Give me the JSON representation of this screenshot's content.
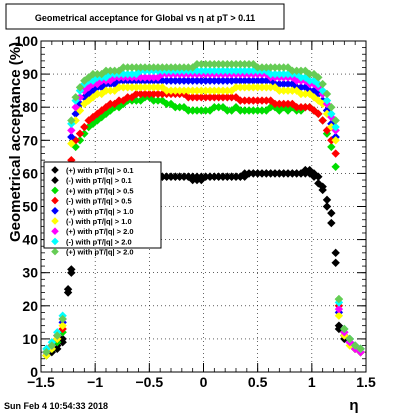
{
  "header": {
    "title": "Geometrical acceptance for Global vs   η at pT > 0.11"
  },
  "footer": {
    "timestamp": "Sun Feb  4 10:54:33 2018"
  },
  "chart_data": {
    "type": "scatter",
    "xlabel": "η",
    "ylabel": "Geometrical acceptance (%)",
    "xlim": [
      -1.5,
      1.5
    ],
    "ylim": [
      0,
      100
    ],
    "x_ticks": [
      "−1.5",
      "−1",
      "−0.5",
      "0",
      "0.5",
      "1",
      "1.5"
    ],
    "y_ticks": [
      "0",
      "10",
      "20",
      "30",
      "40",
      "50",
      "60",
      "70",
      "80",
      "90",
      "100"
    ],
    "grid": true,
    "legend_position": "left-middle",
    "x": [
      -1.45,
      -1.4,
      -1.35,
      -1.3,
      -1.25,
      -1.22,
      -1.18,
      -1.14,
      -1.1,
      -1.06,
      -1.02,
      -0.98,
      -0.94,
      -0.9,
      -0.86,
      -0.82,
      -0.78,
      -0.74,
      -0.7,
      -0.66,
      -0.62,
      -0.58,
      -0.54,
      -0.5,
      -0.46,
      -0.42,
      -0.38,
      -0.34,
      -0.3,
      -0.26,
      -0.22,
      -0.18,
      -0.14,
      -0.1,
      -0.06,
      -0.02,
      0.02,
      0.06,
      0.1,
      0.14,
      0.18,
      0.22,
      0.26,
      0.3,
      0.34,
      0.38,
      0.42,
      0.46,
      0.5,
      0.54,
      0.58,
      0.62,
      0.66,
      0.7,
      0.74,
      0.78,
      0.82,
      0.86,
      0.9,
      0.94,
      0.98,
      1.02,
      1.06,
      1.1,
      1.14,
      1.18,
      1.22,
      1.25,
      1.3,
      1.35,
      1.4,
      1.45
    ],
    "series": [
      {
        "name": "(+) with pT/|q| > 0.1",
        "color": "#000000",
        "values": [
          6,
          7,
          8,
          10,
          25,
          31,
          44,
          52,
          57,
          59,
          60,
          60,
          60,
          60,
          60,
          60,
          60,
          60,
          60,
          60,
          60,
          60,
          60,
          60,
          59,
          59,
          59,
          59,
          59,
          59,
          59,
          59,
          59,
          59,
          59,
          58,
          59,
          59,
          59,
          59,
          59,
          59,
          59,
          59,
          59,
          59,
          60,
          60,
          60,
          60,
          60,
          60,
          60,
          60,
          60,
          60,
          60,
          60,
          60,
          60,
          61,
          60,
          59,
          56,
          52,
          48,
          36,
          14,
          11,
          10,
          8,
          7
        ]
      },
      {
        "name": "(-) with pT/|q| > 0.1",
        "color": "#000000",
        "values": [
          5,
          6,
          7,
          9,
          24,
          30,
          43,
          51,
          56,
          58,
          59,
          59,
          59,
          59,
          59,
          59,
          59,
          59,
          59,
          59,
          59,
          59,
          59,
          59,
          59,
          59,
          59,
          59,
          59,
          59,
          59,
          59,
          59,
          58,
          58,
          59,
          59,
          59,
          59,
          59,
          59,
          59,
          59,
          59,
          59,
          60,
          60,
          60,
          60,
          60,
          60,
          60,
          60,
          60,
          60,
          60,
          60,
          60,
          60,
          61,
          60,
          59,
          57,
          55,
          50,
          45,
          33,
          13,
          10,
          9,
          7,
          6
        ]
      },
      {
        "name": "(+) with pT/|q| > 0.5",
        "color": "#00dd00",
        "values": [
          5,
          7,
          9,
          12,
          42,
          62,
          68,
          70,
          72,
          74,
          75,
          76,
          77,
          78,
          79,
          80,
          80,
          81,
          82,
          82,
          82,
          82,
          83,
          83,
          82,
          82,
          82,
          81,
          81,
          80,
          80,
          80,
          79,
          79,
          79,
          79,
          79,
          79,
          80,
          80,
          80,
          79,
          79,
          80,
          79,
          79,
          79,
          79,
          79,
          79,
          79,
          80,
          80,
          79,
          80,
          79,
          80,
          79,
          79,
          80,
          80,
          79,
          78,
          76,
          72,
          68,
          62,
          22,
          12,
          9,
          7,
          6
        ]
      },
      {
        "name": "(-) with pT/|q| > 0.5",
        "color": "#ff0000",
        "values": [
          6,
          8,
          10,
          13,
          44,
          64,
          70,
          72,
          74,
          76,
          77,
          78,
          79,
          80,
          81,
          81,
          82,
          82,
          83,
          83,
          84,
          84,
          84,
          84,
          84,
          84,
          84,
          84,
          84,
          84,
          84,
          84,
          83,
          83,
          83,
          83,
          83,
          83,
          83,
          83,
          83,
          83,
          83,
          83,
          82,
          82,
          82,
          82,
          82,
          82,
          82,
          82,
          81,
          81,
          81,
          81,
          81,
          80,
          80,
          80,
          80,
          79,
          78,
          76,
          73,
          70,
          66,
          20,
          11,
          9,
          7,
          6
        ]
      },
      {
        "name": "(+) with pT/|q| > 1.0",
        "color": "#0000ff",
        "values": [
          6,
          8,
          11,
          15,
          50,
          71,
          78,
          81,
          83,
          84,
          85,
          86,
          86,
          87,
          87,
          87,
          88,
          88,
          88,
          88,
          88,
          88,
          88,
          88,
          88,
          88,
          88,
          88,
          88,
          88,
          88,
          88,
          88,
          88,
          88,
          88,
          88,
          88,
          88,
          88,
          88,
          88,
          88,
          88,
          88,
          88,
          88,
          88,
          88,
          88,
          88,
          88,
          87,
          87,
          87,
          87,
          87,
          86,
          86,
          86,
          85,
          85,
          84,
          82,
          79,
          75,
          71,
          18,
          11,
          9,
          7,
          6
        ]
      },
      {
        "name": "(-) with pT/|q| > 1.0",
        "color": "#ffff00",
        "values": [
          5,
          7,
          10,
          14,
          48,
          69,
          76,
          79,
          81,
          82,
          83,
          84,
          84,
          85,
          85,
          85,
          86,
          86,
          86,
          86,
          86,
          86,
          86,
          86,
          86,
          86,
          86,
          85,
          85,
          85,
          85,
          85,
          85,
          85,
          85,
          85,
          85,
          85,
          85,
          85,
          85,
          85,
          85,
          86,
          86,
          86,
          86,
          86,
          86,
          86,
          86,
          86,
          86,
          85,
          85,
          85,
          85,
          85,
          84,
          84,
          84,
          83,
          82,
          81,
          78,
          74,
          70,
          17,
          11,
          8,
          7,
          6
        ]
      },
      {
        "name": "(+) with pT/|q| > 2.0",
        "color": "#ff00ff",
        "values": [
          6,
          8,
          11,
          16,
          52,
          73,
          80,
          83,
          85,
          86,
          87,
          87,
          88,
          88,
          88,
          89,
          89,
          89,
          89,
          89,
          89,
          89,
          89,
          89,
          89,
          89,
          90,
          90,
          90,
          90,
          90,
          90,
          90,
          90,
          90,
          90,
          90,
          90,
          90,
          90,
          90,
          90,
          90,
          90,
          90,
          90,
          90,
          90,
          90,
          90,
          90,
          89,
          89,
          89,
          89,
          89,
          89,
          88,
          88,
          88,
          87,
          87,
          86,
          84,
          81,
          77,
          73,
          19,
          12,
          9,
          7,
          6
        ]
      },
      {
        "name": "(-) with pT/|q| > 2.0",
        "color": "#00ffff",
        "values": [
          7,
          9,
          12,
          17,
          55,
          75,
          82,
          85,
          87,
          88,
          88,
          89,
          89,
          89,
          90,
          90,
          90,
          90,
          90,
          90,
          90,
          91,
          91,
          91,
          91,
          91,
          91,
          91,
          91,
          91,
          91,
          91,
          91,
          91,
          91,
          91,
          91,
          91,
          91,
          91,
          91,
          91,
          91,
          91,
          91,
          91,
          91,
          91,
          91,
          91,
          91,
          90,
          90,
          90,
          90,
          90,
          90,
          90,
          89,
          89,
          88,
          88,
          87,
          85,
          82,
          78,
          74,
          21,
          13,
          10,
          8,
          7
        ]
      },
      {
        "name": "(+) with pT/|q| > 2.0",
        "color": "#66cc55",
        "values": [
          6,
          8,
          11,
          16,
          56,
          76,
          83,
          86,
          88,
          89,
          90,
          90,
          90,
          91,
          91,
          91,
          91,
          92,
          92,
          92,
          92,
          92,
          92,
          92,
          92,
          92,
          92,
          92,
          92,
          92,
          92,
          92,
          92,
          92,
          93,
          93,
          93,
          93,
          93,
          93,
          93,
          93,
          93,
          93,
          93,
          93,
          93,
          93,
          92,
          92,
          92,
          92,
          92,
          92,
          92,
          92,
          91,
          91,
          91,
          91,
          90,
          90,
          89,
          87,
          84,
          80,
          76,
          22,
          13,
          10,
          8,
          7
        ]
      }
    ]
  }
}
